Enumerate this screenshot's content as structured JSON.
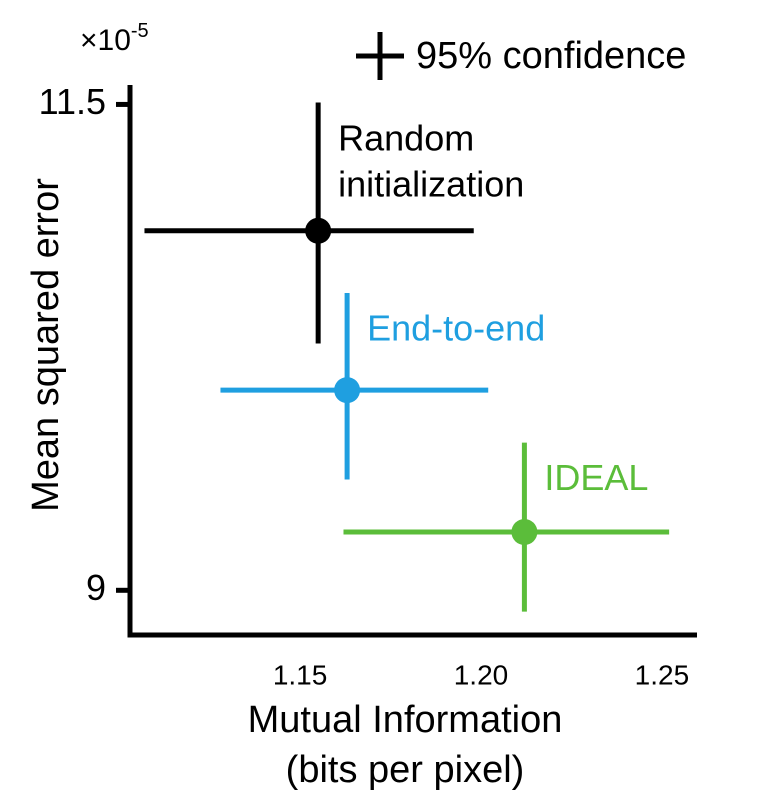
{
  "chart_data": {
    "type": "errorbar-scatter",
    "ylabel": "Mean squared error",
    "xlabel": [
      "Mutual Information",
      "(bits per pixel)"
    ],
    "y_multiplier": {
      "base": "×10",
      "exponent": "-5"
    },
    "legend": "95% confidence",
    "xlim": [
      1.103,
      1.2597
    ],
    "xticks": [
      1.15,
      {
        "value": 1.2,
        "label": "1.20"
      },
      1.25
    ],
    "ylim": [
      8.77,
      11.6
    ],
    "yticks": [
      9,
      11.5
    ],
    "series": [
      {
        "name": "Random initialization",
        "color": "#000000",
        "x": [
          1.155
        ],
        "values": [
          10.85
        ],
        "xerr": [
          [
            0.048,
            0.043
          ]
        ],
        "yerr": [
          [
            0.58,
            0.66
          ]
        ]
      },
      {
        "name": "End-to-end",
        "color": "#1f9fe0",
        "x": [
          1.163
        ],
        "values": [
          10.03
        ],
        "xerr": [
          [
            0.035,
            0.039
          ]
        ],
        "yerr": [
          [
            0.46,
            0.5
          ]
        ]
      },
      {
        "name": "IDEAL",
        "color": "#5bbd3a",
        "x": [
          1.212
        ],
        "values": [
          9.3
        ],
        "xerr": [
          [
            0.05,
            0.04
          ]
        ],
        "yerr": [
          [
            0.41,
            0.46
          ]
        ]
      }
    ]
  }
}
